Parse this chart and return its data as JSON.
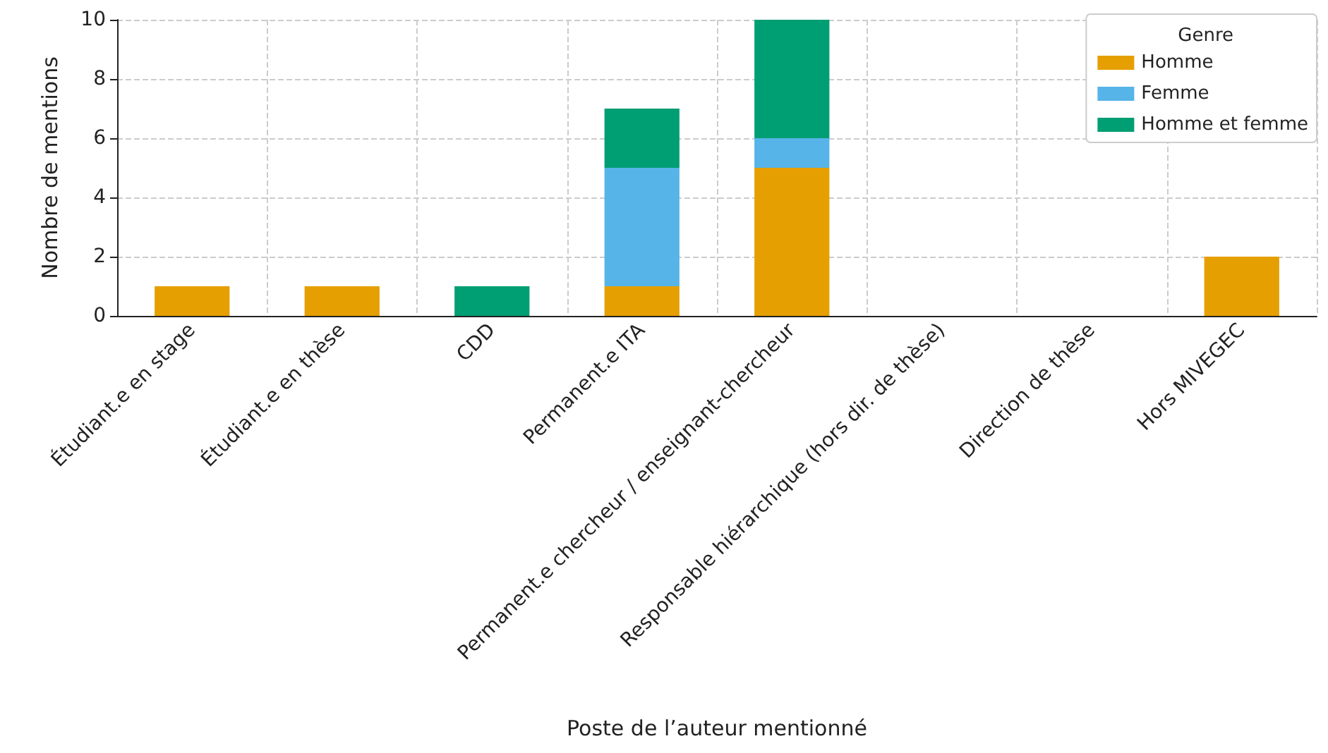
{
  "chart_data": {
    "type": "bar",
    "stacked": true,
    "xlabel": "Poste de l’auteur mentionné",
    "ylabel": "Nombre de mentions",
    "legend_title": "Genre",
    "categories": [
      "Étudiant.e en stage",
      "Étudiant.e en thèse",
      "CDD",
      "Permanent.e ITA",
      "Permanent.e chercheur / enseignant-chercheur",
      "Responsable hiérarchique (hors dir. de thèse)",
      "Direction de thèse",
      "Hors MIVEGEC"
    ],
    "series": [
      {
        "name": "Homme",
        "color": "#e69f00",
        "values": [
          1,
          1,
          0,
          1,
          5,
          0,
          0,
          2
        ]
      },
      {
        "name": "Femme",
        "color": "#56b4e9",
        "values": [
          0,
          0,
          0,
          4,
          1,
          0,
          0,
          0
        ]
      },
      {
        "name": "Homme et femme",
        "color": "#009e73",
        "values": [
          0,
          0,
          1,
          2,
          4,
          0,
          0,
          0
        ]
      }
    ],
    "ylim": [
      0,
      10
    ],
    "yticks": [
      0,
      2,
      4,
      6,
      8,
      10
    ],
    "grid": true,
    "legend": "top right"
  }
}
